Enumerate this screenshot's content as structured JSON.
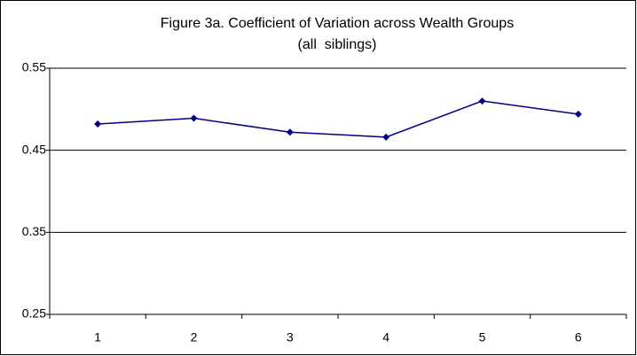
{
  "chart_data": {
    "type": "line",
    "title": "Figure 3a. Coefficient of Variation across Wealth Groups",
    "subtitle": "(all  siblings)",
    "categories": [
      "1",
      "2",
      "3",
      "4",
      "5",
      "6"
    ],
    "series": [
      {
        "name": "Coefficient of Variation",
        "color": "#000080",
        "values": [
          0.482,
          0.489,
          0.472,
          0.466,
          0.51,
          0.494
        ]
      }
    ],
    "ylim": [
      0.25,
      0.55
    ],
    "yticks": [
      0.25,
      0.35,
      0.45,
      0.55
    ],
    "grid": true,
    "legend": false
  }
}
